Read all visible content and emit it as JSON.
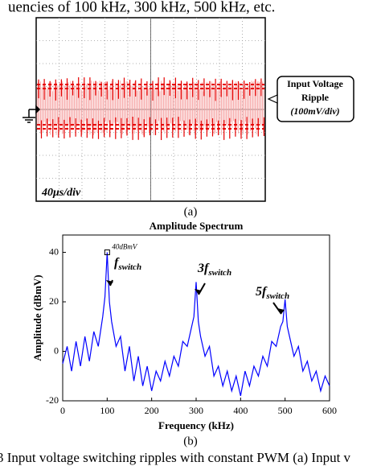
{
  "top_text": "uencies of 100 kHz, 300 kHz, 500 kHz, etc.",
  "figure_a": {
    "scale_label": "40μs/div",
    "callout": [
      "Input Voltage",
      "Ripple",
      "(100mV/div)"
    ],
    "label": "(a)"
  },
  "chart_data": {
    "type": "line",
    "title": "Amplitude Spectrum",
    "x_label": "Frequency (kHz)",
    "y_label": "Amplitude (dBmV)",
    "xlim": [
      0,
      600
    ],
    "ylim": [
      -20,
      47
    ],
    "xticks": [
      0,
      100,
      200,
      300,
      400,
      500,
      600
    ],
    "yticks": [
      -20,
      0,
      20,
      40
    ],
    "series": [
      {
        "color": "#0000ff",
        "x": [
          0,
          10,
          20,
          30,
          40,
          50,
          60,
          70,
          80,
          90,
          95,
          100,
          105,
          110,
          120,
          130,
          140,
          150,
          160,
          170,
          180,
          190,
          200,
          210,
          220,
          230,
          240,
          250,
          260,
          270,
          280,
          290,
          295,
          300,
          305,
          310,
          320,
          330,
          340,
          350,
          360,
          370,
          380,
          390,
          400,
          410,
          420,
          430,
          440,
          450,
          460,
          470,
          480,
          490,
          495,
          500,
          505,
          510,
          520,
          530,
          540,
          550,
          560,
          570,
          580,
          590,
          600
        ],
        "values": [
          -5,
          2,
          -8,
          4,
          -6,
          6,
          -4,
          8,
          2,
          14,
          22,
          40,
          20,
          12,
          2,
          6,
          -8,
          2,
          -12,
          -2,
          -14,
          -6,
          -16,
          -8,
          -12,
          -4,
          -10,
          -2,
          -6,
          4,
          2,
          10,
          14,
          28,
          12,
          6,
          -2,
          2,
          -10,
          -6,
          -14,
          -8,
          -16,
          -10,
          -18,
          -8,
          -14,
          -6,
          -10,
          -2,
          -6,
          4,
          2,
          10,
          12,
          21,
          10,
          6,
          -2,
          2,
          -8,
          -4,
          -12,
          -8,
          -16,
          -10,
          -14
        ]
      }
    ],
    "peak_label": "40dBmV",
    "annotations": [
      {
        "main": "f",
        "sub": "switch"
      },
      {
        "main": "3f",
        "sub": "switch"
      },
      {
        "main": "5f",
        "sub": "switch"
      }
    ]
  },
  "figure_b_label": "(b)",
  "caption": "3 Input voltage switching ripples with constant PWM (a) Input v"
}
